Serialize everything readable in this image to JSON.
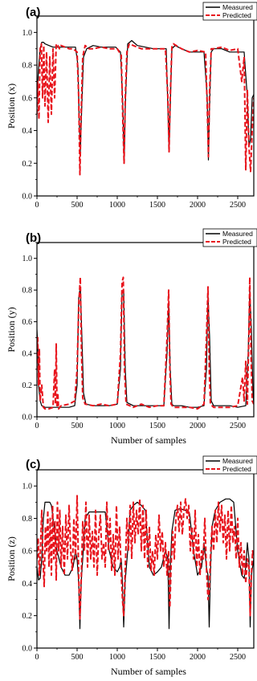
{
  "chart_data": [
    {
      "type": "line",
      "panel_label": "(a)",
      "xlabel": "",
      "ylabel": "Position (x)",
      "xlim": [
        0,
        2700
      ],
      "ylim": [
        0.0,
        1.1
      ],
      "xticks": [
        "0",
        "500",
        "1000",
        "1500",
        "2000",
        "2500"
      ],
      "yticks": [
        "0.0",
        "0.2",
        "0.4",
        "0.6",
        "0.8",
        "1.0"
      ],
      "legend_position": "top-right",
      "series": [
        {
          "name": "Measured",
          "color": "#000000",
          "style": "solid",
          "x": [
            0,
            20,
            40,
            60,
            80,
            100,
            150,
            200,
            300,
            400,
            480,
            510,
            525,
            540,
            555,
            580,
            620,
            700,
            800,
            900,
            980,
            1040,
            1070,
            1085,
            1100,
            1130,
            1180,
            1250,
            1350,
            1450,
            1550,
            1610,
            1630,
            1645,
            1660,
            1680,
            1720,
            1800,
            1900,
            2000,
            2080,
            2120,
            2135,
            2150,
            2170,
            2200,
            2300,
            2400,
            2500,
            2580,
            2620,
            2640,
            2660,
            2680,
            2700
          ],
          "y": [
            0.6,
            0.78,
            0.9,
            0.94,
            0.94,
            0.93,
            0.92,
            0.91,
            0.91,
            0.91,
            0.91,
            0.8,
            0.5,
            0.27,
            0.5,
            0.85,
            0.9,
            0.92,
            0.91,
            0.91,
            0.91,
            0.88,
            0.55,
            0.2,
            0.55,
            0.93,
            0.95,
            0.92,
            0.91,
            0.9,
            0.9,
            0.9,
            0.55,
            0.28,
            0.55,
            0.9,
            0.92,
            0.9,
            0.88,
            0.88,
            0.88,
            0.6,
            0.22,
            0.55,
            0.88,
            0.9,
            0.9,
            0.88,
            0.88,
            0.88,
            0.6,
            0.3,
            0.35,
            0.6,
            0.62
          ]
        },
        {
          "name": "Predicted",
          "color": "#e8141c",
          "style": "dashed",
          "x": [
            0,
            10,
            25,
            40,
            55,
            70,
            85,
            100,
            120,
            140,
            160,
            180,
            200,
            220,
            240,
            260,
            280,
            300,
            350,
            400,
            450,
            500,
            520,
            535,
            550,
            570,
            600,
            650,
            700,
            800,
            900,
            1000,
            1050,
            1070,
            1085,
            1100,
            1120,
            1150,
            1200,
            1300,
            1400,
            1500,
            1600,
            1630,
            1645,
            1660,
            1680,
            1700,
            1800,
            1900,
            2000,
            2100,
            2120,
            2135,
            2150,
            2170,
            2200,
            2300,
            2400,
            2500,
            2550,
            2580,
            2600,
            2620,
            2640,
            2660,
            2680,
            2700
          ],
          "y": [
            0.5,
            0.7,
            0.47,
            0.9,
            0.93,
            0.6,
            0.92,
            0.55,
            0.88,
            0.45,
            0.85,
            0.5,
            0.9,
            0.6,
            0.93,
            0.92,
            0.9,
            0.92,
            0.91,
            0.9,
            0.9,
            0.88,
            0.6,
            0.13,
            0.5,
            0.85,
            0.92,
            0.9,
            0.9,
            0.91,
            0.9,
            0.9,
            0.86,
            0.45,
            0.2,
            0.6,
            0.88,
            0.93,
            0.92,
            0.9,
            0.9,
            0.9,
            0.9,
            0.6,
            0.27,
            0.6,
            0.91,
            0.93,
            0.9,
            0.88,
            0.89,
            0.88,
            0.55,
            0.24,
            0.65,
            0.9,
            0.9,
            0.91,
            0.89,
            0.9,
            0.7,
            0.85,
            0.16,
            0.65,
            0.3,
            0.15,
            0.4,
            0.6
          ]
        }
      ]
    },
    {
      "type": "line",
      "panel_label": "(b)",
      "xlabel": "Number of samples",
      "ylabel": "Position (y)",
      "xlim": [
        0,
        2700
      ],
      "ylim": [
        0.0,
        1.1
      ],
      "xticks": [
        "0",
        "500",
        "1000",
        "1500",
        "2000",
        "2500"
      ],
      "yticks": [
        "0.0",
        "0.2",
        "0.4",
        "0.6",
        "0.8",
        "1.0"
      ],
      "legend_position": "top-right",
      "series": [
        {
          "name": "Measured",
          "color": "#000000",
          "style": "solid",
          "x": [
            0,
            10,
            20,
            40,
            60,
            100,
            200,
            300,
            400,
            470,
            500,
            520,
            540,
            560,
            580,
            610,
            700,
            800,
            900,
            1000,
            1040,
            1060,
            1080,
            1100,
            1120,
            1200,
            1300,
            1400,
            1500,
            1580,
            1620,
            1640,
            1660,
            1680,
            1700,
            1800,
            1900,
            2000,
            2080,
            2110,
            2130,
            2150,
            2170,
            2200,
            2300,
            2400,
            2500,
            2600,
            2630,
            2650,
            2670,
            2690,
            2700
          ],
          "y": [
            0.55,
            0.45,
            0.2,
            0.1,
            0.07,
            0.06,
            0.06,
            0.06,
            0.06,
            0.07,
            0.2,
            0.75,
            0.82,
            0.5,
            0.15,
            0.08,
            0.07,
            0.07,
            0.07,
            0.08,
            0.3,
            0.78,
            0.8,
            0.3,
            0.09,
            0.07,
            0.07,
            0.07,
            0.07,
            0.07,
            0.4,
            0.72,
            0.3,
            0.08,
            0.07,
            0.07,
            0.06,
            0.06,
            0.07,
            0.3,
            0.77,
            0.5,
            0.1,
            0.07,
            0.07,
            0.07,
            0.06,
            0.07,
            0.4,
            0.8,
            0.55,
            0.15,
            0.08
          ]
        },
        {
          "name": "Predicted",
          "color": "#e8141c",
          "style": "dashed",
          "x": [
            0,
            10,
            20,
            30,
            40,
            60,
            80,
            100,
            150,
            200,
            220,
            230,
            240,
            250,
            260,
            270,
            300,
            400,
            470,
            500,
            520,
            540,
            555,
            570,
            600,
            700,
            800,
            900,
            1000,
            1040,
            1060,
            1075,
            1090,
            1110,
            1200,
            1300,
            1400,
            1500,
            1580,
            1620,
            1640,
            1655,
            1670,
            1700,
            1800,
            1900,
            2000,
            2080,
            2110,
            2130,
            2145,
            2160,
            2200,
            2300,
            2400,
            2500,
            2560,
            2580,
            2600,
            2620,
            2640,
            2650,
            2665,
            2680,
            2700
          ],
          "y": [
            0.45,
            0.5,
            0.2,
            0.43,
            0.1,
            0.2,
            0.06,
            0.05,
            0.05,
            0.06,
            0.3,
            0.08,
            0.46,
            0.06,
            0.15,
            0.05,
            0.07,
            0.08,
            0.1,
            0.3,
            0.7,
            0.88,
            0.4,
            0.12,
            0.08,
            0.07,
            0.08,
            0.07,
            0.08,
            0.4,
            0.85,
            0.88,
            0.3,
            0.08,
            0.06,
            0.08,
            0.06,
            0.07,
            0.07,
            0.5,
            0.8,
            0.3,
            0.08,
            0.06,
            0.06,
            0.06,
            0.05,
            0.08,
            0.5,
            0.82,
            0.3,
            0.08,
            0.06,
            0.06,
            0.06,
            0.07,
            0.25,
            0.1,
            0.35,
            0.08,
            0.55,
            0.88,
            0.4,
            0.1,
            0.08
          ]
        }
      ]
    },
    {
      "type": "line",
      "panel_label": "(c)",
      "xlabel": "Number of samples",
      "ylabel": "Position (z)",
      "xlim": [
        0,
        2700
      ],
      "ylim": [
        0.0,
        1.1
      ],
      "xticks": [
        "0",
        "500",
        "1000",
        "1500",
        "2000",
        "2500"
      ],
      "yticks": [
        "0.0",
        "0.2",
        "0.4",
        "0.6",
        "0.8",
        "1.0"
      ],
      "legend_position": "top-right",
      "series": [
        {
          "name": "Measured",
          "color": "#000000",
          "style": "solid",
          "x": [
            0,
            20,
            40,
            60,
            80,
            100,
            120,
            140,
            160,
            180,
            200,
            250,
            300,
            350,
            400,
            450,
            480,
            500,
            520,
            535,
            550,
            570,
            600,
            650,
            700,
            750,
            800,
            850,
            900,
            950,
            1000,
            1030,
            1050,
            1065,
            1080,
            1100,
            1130,
            1160,
            1200,
            1250,
            1300,
            1350,
            1400,
            1450,
            1500,
            1550,
            1600,
            1630,
            1645,
            1660,
            1680,
            1720,
            1780,
            1850,
            1900,
            1950,
            2000,
            2050,
            2080,
            2110,
            2130,
            2145,
            2160,
            2180,
            2220,
            2280,
            2350,
            2400,
            2450,
            2500,
            2550,
            2580,
            2600,
            2620,
            2640,
            2655,
            2670,
            2700
          ],
          "y": [
            0.5,
            0.42,
            0.43,
            0.55,
            0.8,
            0.9,
            0.9,
            0.9,
            0.9,
            0.88,
            0.8,
            0.6,
            0.5,
            0.45,
            0.45,
            0.5,
            0.6,
            0.55,
            0.4,
            0.12,
            0.4,
            0.55,
            0.8,
            0.84,
            0.84,
            0.84,
            0.84,
            0.84,
            0.6,
            0.5,
            0.47,
            0.5,
            0.55,
            0.4,
            0.13,
            0.42,
            0.6,
            0.85,
            0.88,
            0.9,
            0.88,
            0.85,
            0.5,
            0.45,
            0.47,
            0.5,
            0.6,
            0.55,
            0.12,
            0.5,
            0.72,
            0.85,
            0.86,
            0.85,
            0.83,
            0.6,
            0.45,
            0.5,
            0.65,
            0.5,
            0.45,
            0.13,
            0.45,
            0.75,
            0.85,
            0.9,
            0.92,
            0.92,
            0.9,
            0.6,
            0.45,
            0.43,
            0.5,
            0.65,
            0.55,
            0.13,
            0.45,
            0.55
          ]
        },
        {
          "name": "Predicted",
          "color": "#e8141c",
          "style": "dashed",
          "x": [
            0,
            15,
            30,
            45,
            60,
            75,
            90,
            105,
            120,
            135,
            150,
            165,
            180,
            195,
            210,
            225,
            240,
            255,
            270,
            285,
            300,
            320,
            340,
            360,
            380,
            400,
            420,
            440,
            460,
            480,
            500,
            520,
            535,
            550,
            570,
            590,
            610,
            630,
            650,
            670,
            690,
            710,
            730,
            750,
            770,
            790,
            810,
            830,
            850,
            870,
            890,
            910,
            930,
            950,
            970,
            990,
            1010,
            1030,
            1050,
            1065,
            1080,
            1100,
            1120,
            1140,
            1160,
            1180,
            1200,
            1220,
            1240,
            1260,
            1280,
            1300,
            1320,
            1340,
            1360,
            1380,
            1400,
            1420,
            1440,
            1460,
            1480,
            1500,
            1520,
            1540,
            1560,
            1580,
            1600,
            1620,
            1640,
            1655,
            1670,
            1690,
            1710,
            1730,
            1750,
            1770,
            1790,
            1810,
            1830,
            1850,
            1870,
            1890,
            1910,
            1930,
            1950,
            1970,
            1990,
            2010,
            2030,
            2050,
            2070,
            2090,
            2110,
            2130,
            2145,
            2160,
            2180,
            2200,
            2220,
            2240,
            2260,
            2280,
            2300,
            2320,
            2340,
            2360,
            2380,
            2400,
            2420,
            2440,
            2460,
            2480,
            2500,
            2520,
            2540,
            2560,
            2580,
            2600,
            2620,
            2640,
            2655,
            2670,
            2685,
            2700
          ],
          "y": [
            0.55,
            0.68,
            0.45,
            0.62,
            0.85,
            0.55,
            0.38,
            0.75,
            0.6,
            0.85,
            0.5,
            0.8,
            0.45,
            0.88,
            0.55,
            0.78,
            0.42,
            0.9,
            0.6,
            0.85,
            0.5,
            0.75,
            0.45,
            0.82,
            0.55,
            0.88,
            0.6,
            0.48,
            0.8,
            0.55,
            0.94,
            0.45,
            0.18,
            0.4,
            0.78,
            0.6,
            0.9,
            0.5,
            0.82,
            0.55,
            0.72,
            0.5,
            0.85,
            0.45,
            0.7,
            0.82,
            0.55,
            0.65,
            0.5,
            0.9,
            0.6,
            0.8,
            0.48,
            0.7,
            0.45,
            0.88,
            0.55,
            0.75,
            0.45,
            0.3,
            0.2,
            0.5,
            0.8,
            0.6,
            0.88,
            0.55,
            0.9,
            0.65,
            0.85,
            0.7,
            0.92,
            0.6,
            0.88,
            0.55,
            0.85,
            0.5,
            0.75,
            0.48,
            0.6,
            0.45,
            0.7,
            0.55,
            0.82,
            0.6,
            0.72,
            0.5,
            0.65,
            0.45,
            0.6,
            0.25,
            0.5,
            0.72,
            0.55,
            0.8,
            0.88,
            0.72,
            0.9,
            0.7,
            0.85,
            0.92,
            0.8,
            0.88,
            0.6,
            0.75,
            0.55,
            0.85,
            0.5,
            0.7,
            0.45,
            0.6,
            0.55,
            0.8,
            0.5,
            0.3,
            0.35,
            0.55,
            0.75,
            0.6,
            0.85,
            0.65,
            0.9,
            0.72,
            0.88,
            0.65,
            0.82,
            0.55,
            0.85,
            0.6,
            0.88,
            0.65,
            0.75,
            0.55,
            0.8,
            0.5,
            0.65,
            0.45,
            0.6,
            0.4,
            0.55,
            0.5,
            0.2,
            0.45,
            0.6,
            0.55
          ]
        }
      ]
    }
  ]
}
